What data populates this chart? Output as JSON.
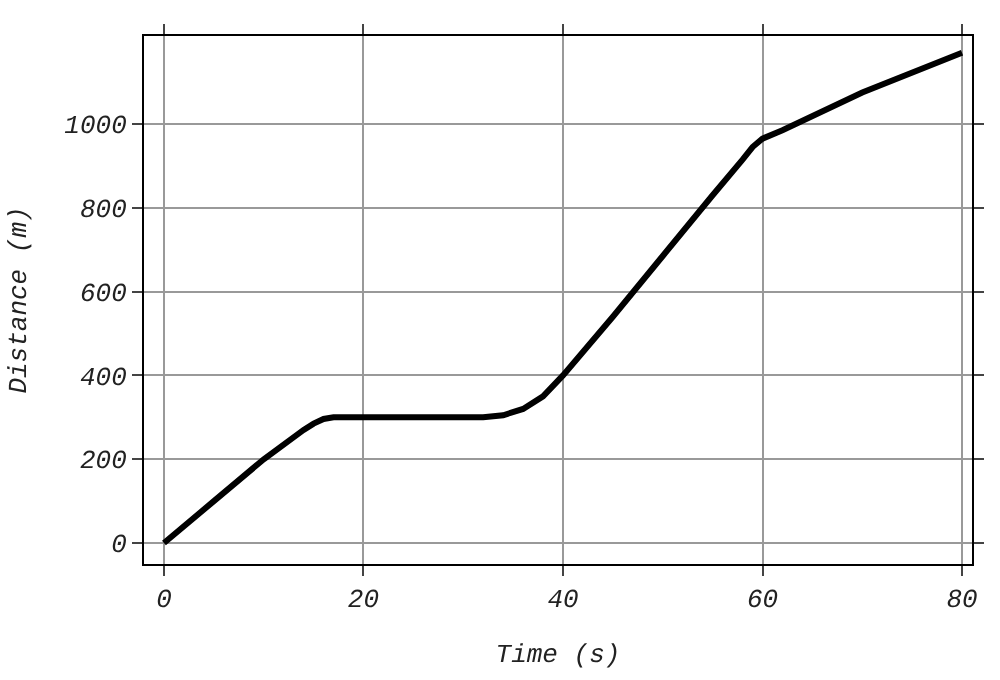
{
  "chart_data": {
    "type": "line",
    "xlabel": "Time (s)",
    "ylabel": "Distance (m)",
    "x": [
      0,
      5,
      10,
      14,
      15,
      16,
      17,
      25,
      32,
      34,
      36,
      38,
      40,
      45,
      50,
      55,
      58,
      59,
      60,
      62,
      70,
      80
    ],
    "series": [
      {
        "color": "#000000",
        "values": [
          0,
          100,
          200,
          270,
          285,
          296,
          300,
          300,
          300,
          305,
          320,
          350,
          400,
          540,
          685,
          830,
          915,
          945,
          965,
          985,
          1075,
          1170
        ]
      }
    ],
    "xlim": [
      -2,
      81
    ],
    "ylim": [
      -50,
      1210
    ],
    "xticks": [
      0,
      20,
      40,
      60,
      80
    ],
    "yticks": [
      0,
      200,
      400,
      600,
      800,
      1000
    ],
    "grid": true,
    "legend": false,
    "marker": "none",
    "line_style": "solid"
  }
}
